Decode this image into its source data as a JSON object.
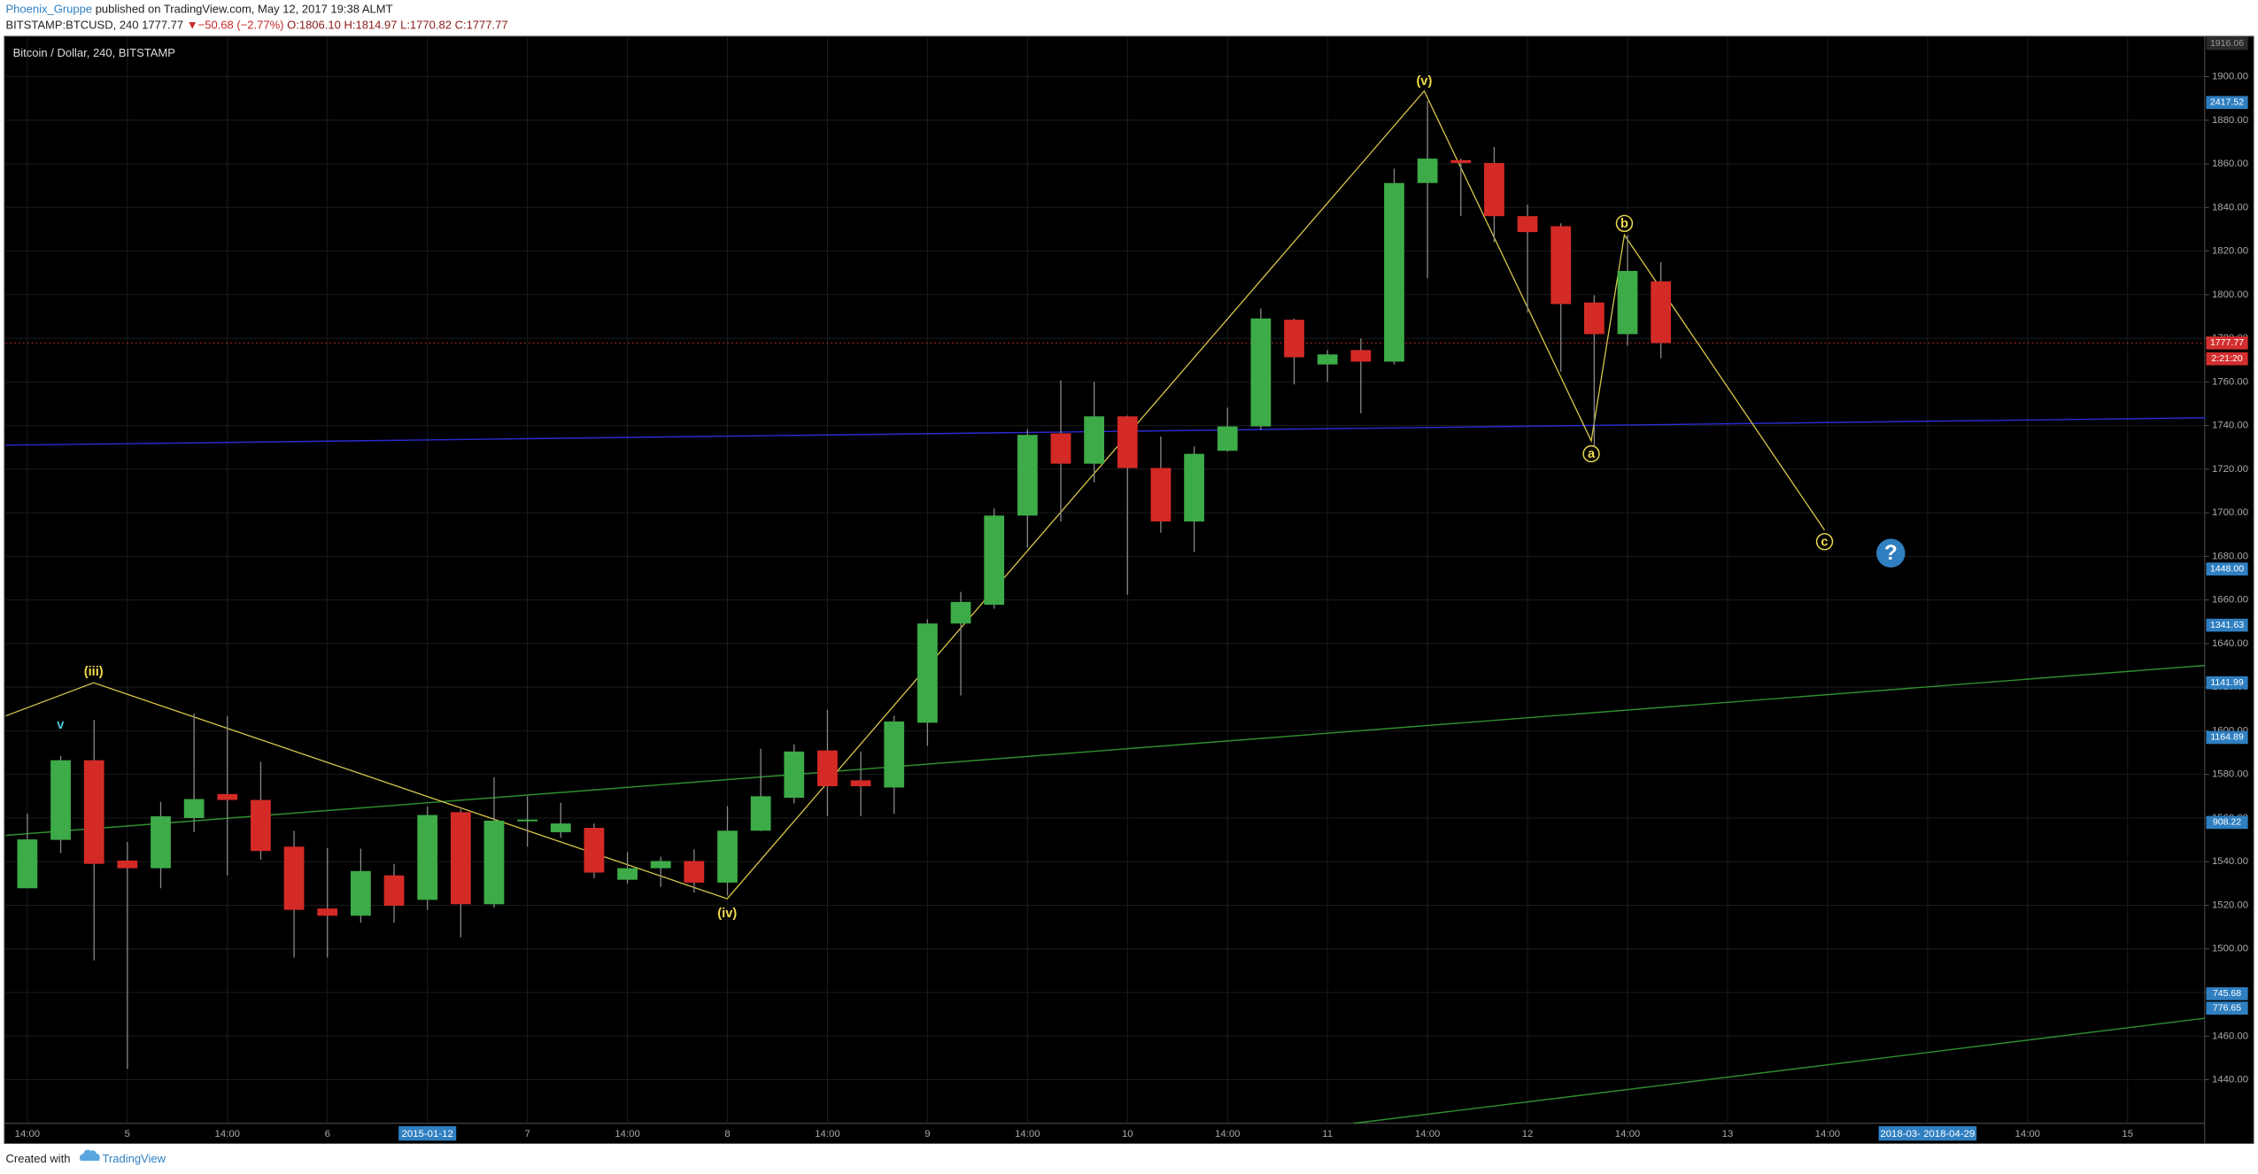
{
  "header": {
    "author": "Phoenix_Gruppe",
    "published": "published on TradingView.com, May 12, 2017 19:38 ALMT",
    "symbol": "BITSTAMP:BTCUSD, 240",
    "last": "1777.77",
    "arrow": "▼",
    "change": "−50.68 (−2.77%)",
    "ohlc": [
      "O:1806.10",
      "H:1814.97",
      "L:1770.82",
      "C:1777.77"
    ]
  },
  "footer": {
    "created": "Created with",
    "brand": "TradingView"
  },
  "chart_data": {
    "type": "candlestick",
    "title": "Bitcoin / Dollar, 240, BITSTAMP",
    "up_color": "#3dab48",
    "down_color": "#d42a26",
    "grid": true,
    "categories": [
      "14:00",
      null,
      null,
      "5",
      null,
      null,
      "14:00",
      null,
      null,
      "6",
      null,
      null,
      "2015-01-12",
      null,
      null,
      "7",
      null,
      null,
      "14:00",
      null,
      null,
      "8",
      null,
      null,
      "14:00",
      null,
      null,
      "9",
      null,
      null,
      "14:00",
      null,
      null,
      "10",
      null,
      null,
      "14:00",
      null,
      null,
      "11",
      null,
      null,
      "14:00",
      null,
      null,
      "12",
      null,
      null,
      "14:00",
      null,
      null,
      "13",
      null,
      null,
      "14:00",
      null,
      null,
      "2018-03- 2018-04-29",
      null,
      null,
      "14:00",
      null,
      null,
      "15"
    ],
    "open": [
      1527.8,
      1550,
      1586.5,
      1540.5,
      1537,
      1560,
      1571,
      1568.3,
      1546.9,
      1518.5,
      1515.2,
      1533.7,
      1522.5,
      1562.7,
      1520.5,
      1558.8,
      1553.5,
      1555.5,
      1531.7,
      1537,
      1540.3,
      1530.4,
      1554.2,
      1569.3,
      1591,
      1577.3,
      1574,
      1603.7,
      1649.2,
      1657.8,
      1698.7,
      1736.4,
      1722.5,
      1744.2,
      1720.5,
      1696,
      1728.4,
      1739.6,
      1788.5,
      1768,
      1774.6,
      1769.3,
      1851.2,
      1861.7,
      1860.4,
      1836,
      1831.4,
      1796.4,
      1781.9,
      1806.1,
      null,
      null,
      null,
      null,
      null,
      null,
      null,
      null,
      null,
      null,
      null,
      null,
      null,
      null
    ],
    "high": [
      1562,
      1588.5,
      1605,
      1549,
      1567.4,
      1608,
      1606.7,
      1585.8,
      1554.2,
      1546.2,
      1546,
      1539,
      1565.4,
      1564,
      1578.6,
      1570,
      1567,
      1557.5,
      1544.3,
      1542.3,
      1545.6,
      1565.4,
      1591.8,
      1593.8,
      1609.6,
      1590.5,
      1606.9,
      1651.2,
      1663.7,
      1702,
      1738.3,
      1760.7,
      1760,
      1744.5,
      1735,
      1730.4,
      1748.2,
      1793.7,
      1789,
      1774.6,
      1779.9,
      1857.8,
      1888.8,
      1862.4,
      1867.7,
      1841.3,
      1832.7,
      1799.7,
      1827.4,
      1814.97,
      null,
      null,
      null,
      null,
      null,
      null,
      null,
      null,
      null,
      null,
      null,
      null,
      null,
      null
    ],
    "low": [
      1527.8,
      1544,
      1494.7,
      1445,
      1527.8,
      1553.5,
      1533.7,
      1540.9,
      1496,
      1496,
      1512,
      1512,
      1517.9,
      1505.3,
      1519,
      1546.9,
      1550.9,
      1532.4,
      1530,
      1528.4,
      1525.8,
      1524.5,
      1554,
      1566.7,
      1560.8,
      1560.8,
      1562,
      1593.1,
      1616.2,
      1656,
      1684,
      1696,
      1713.9,
      1662.4,
      1690.8,
      1682,
      1728,
      1738,
      1758.8,
      1760,
      1745.6,
      1768,
      1807.6,
      1836,
      1824,
      1791.8,
      1764.7,
      1730.4,
      1776.6,
      1770.82,
      null,
      null,
      null,
      null,
      null,
      null,
      null,
      null,
      null,
      null,
      null,
      null,
      null,
      null
    ],
    "close": [
      1550.2,
      1586.5,
      1539,
      1537,
      1560.8,
      1568.7,
      1568.3,
      1544.9,
      1517.9,
      1515.2,
      1535.7,
      1519.8,
      1561.4,
      1520.5,
      1558.8,
      1559.3,
      1557.5,
      1535,
      1537,
      1540.3,
      1530.4,
      1554.2,
      1570,
      1590.5,
      1574.6,
      1574.6,
      1604.3,
      1649.2,
      1659.1,
      1698.7,
      1735.7,
      1722.5,
      1744.2,
      1720.5,
      1696,
      1727,
      1739.6,
      1789.1,
      1771.3,
      1772.6,
      1769.3,
      1851.2,
      1862.4,
      1860.4,
      1836,
      1828.7,
      1795.7,
      1781.9,
      1810.9,
      1777.77,
      null,
      null,
      null,
      null,
      null,
      null,
      null,
      null,
      null,
      null,
      null,
      null,
      null,
      null
    ],
    "ylim": [
      1420,
      1918.5
    ],
    "yticks": [
      {
        "value": 1440,
        "label": "1440.00"
      },
      {
        "value": 1460,
        "label": "1460.00"
      },
      {
        "value": 1480,
        "label": "1480.00"
      },
      {
        "value": 1500,
        "label": "1500.00"
      },
      {
        "value": 1520,
        "label": "1520.00"
      },
      {
        "value": 1540,
        "label": "1540.00"
      },
      {
        "value": 1560,
        "label": "1560.00"
      },
      {
        "value": 1580,
        "label": "1580.00"
      },
      {
        "value": 1600,
        "label": "1600.00"
      },
      {
        "value": 1620,
        "label": "1620.00"
      },
      {
        "value": 1640,
        "label": "1640.00"
      },
      {
        "value": 1660,
        "label": "1660.00"
      },
      {
        "value": 1680,
        "label": "1680.00"
      },
      {
        "value": 1700,
        "label": "1700.00"
      },
      {
        "value": 1720,
        "label": "1720.00"
      },
      {
        "value": 1740,
        "label": "1740.00"
      },
      {
        "value": 1760,
        "label": "1760.00"
      },
      {
        "value": 1780,
        "label": "1780.00"
      },
      {
        "value": 1800,
        "label": "1800.00"
      },
      {
        "value": 1820,
        "label": "1820.00"
      },
      {
        "value": 1840,
        "label": "1840.00"
      },
      {
        "value": 1860,
        "label": "1860.00"
      },
      {
        "value": 1880,
        "label": "1880.00"
      },
      {
        "value": 1900,
        "label": "1900.00"
      }
    ],
    "price_badges": [
      {
        "label": "1916.06",
        "color": "#2a2a2a"
      },
      {
        "label": "2417.52",
        "color": "#2f7fc1"
      },
      {
        "label": "1777.77",
        "color": "#d32f2f"
      },
      {
        "label": "2:21:20",
        "color": "#d32f2f"
      },
      {
        "label": "1448.00",
        "color": "#2f7fc1"
      },
      {
        "label": "1341.63",
        "color": "#2f7fc1"
      },
      {
        "label": "1141.99",
        "color": "#2f7fc1"
      },
      {
        "label": "1164.89",
        "color": "#2f7fc1"
      },
      {
        "label": "908.22",
        "color": "#2f7fc1"
      },
      {
        "label": "745.68",
        "color": "#2f7fc1"
      },
      {
        "label": "776.65",
        "color": "#2f7fc1"
      }
    ],
    "annotations": [
      {
        "text": "(iii)",
        "color": "#f0dc4e"
      },
      {
        "text": "v",
        "color": "#4fc3e0"
      },
      {
        "text": "(iv)",
        "color": "#f0dc4e"
      },
      {
        "text": "(v)",
        "color": "#f0dc4e"
      },
      {
        "text": "a",
        "color": "#f0dc4e"
      },
      {
        "text": "b",
        "color": "#f0dc4e"
      },
      {
        "text": "c",
        "color": "#f0dc4e"
      },
      {
        "text": "?",
        "color": "#ffffff"
      }
    ]
  }
}
